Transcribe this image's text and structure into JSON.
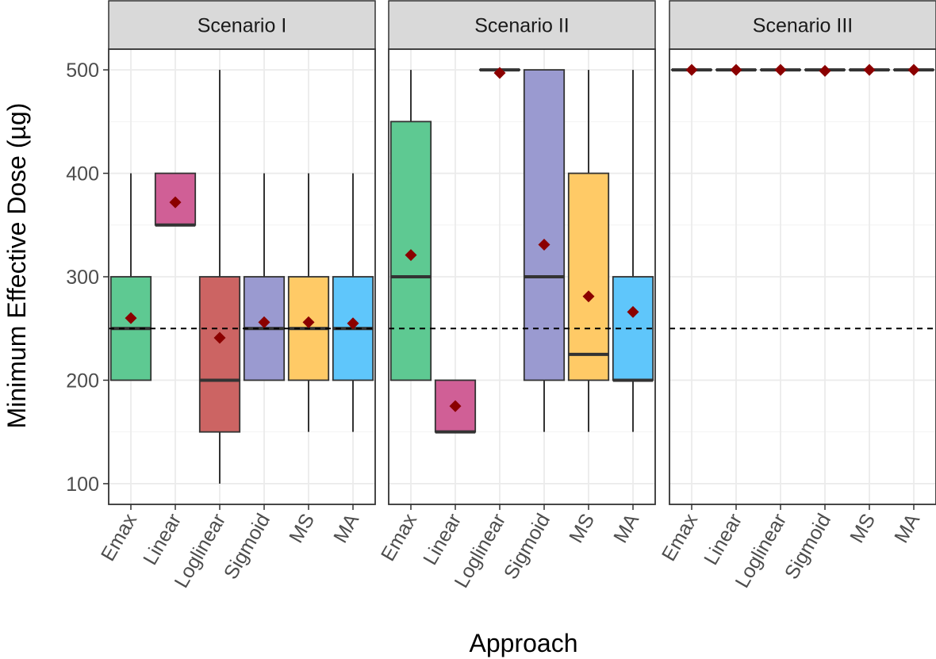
{
  "chart_data": {
    "type": "box",
    "xlabel": "Approach",
    "ylabel": "Minimum Effective Dose (µg)",
    "ylim": [
      80,
      520
    ],
    "yticks": [
      100,
      200,
      300,
      400,
      500
    ],
    "grid": true,
    "legend": "none",
    "reference_line": 250,
    "categories": [
      "Emax",
      "Linear",
      "Loglinear",
      "Sigmoid",
      "MS",
      "MA"
    ],
    "colors": {
      "Emax": "#5ec992",
      "Linear": "#d05f96",
      "Loglinear": "#cc6463",
      "Sigmoid": "#9a9ad0",
      "MS": "#ffca66",
      "MA": "#5fc6fb",
      "mean_marker": "#8b0000",
      "strip": "#d9d9d9"
    },
    "panels": [
      {
        "title": "Scenario I",
        "boxes": [
          {
            "category": "Emax",
            "min": 200,
            "q1": 200,
            "median": 250,
            "q3": 300,
            "max": 400,
            "mean": 260
          },
          {
            "category": "Linear",
            "min": 350,
            "q1": 350,
            "median": 350,
            "q3": 400,
            "max": 400,
            "mean": 372
          },
          {
            "category": "Loglinear",
            "min": 100,
            "q1": 150,
            "median": 200,
            "q3": 300,
            "max": 500,
            "mean": 241
          },
          {
            "category": "Sigmoid",
            "min": 200,
            "q1": 200,
            "median": 250,
            "q3": 300,
            "max": 400,
            "mean": 256
          },
          {
            "category": "MS",
            "min": 150,
            "q1": 200,
            "median": 250,
            "q3": 300,
            "max": 400,
            "mean": 256
          },
          {
            "category": "MA",
            "min": 150,
            "q1": 200,
            "median": 250,
            "q3": 300,
            "max": 400,
            "mean": 255
          }
        ]
      },
      {
        "title": "Scenario II",
        "boxes": [
          {
            "category": "Emax",
            "min": 200,
            "q1": 200,
            "median": 300,
            "q3": 450,
            "max": 500,
            "mean": 321
          },
          {
            "category": "Linear",
            "min": 150,
            "q1": 150,
            "median": 150,
            "q3": 200,
            "max": 200,
            "mean": 175
          },
          {
            "category": "Loglinear",
            "min": 500,
            "q1": 500,
            "median": 500,
            "q3": 500,
            "max": 500,
            "mean": 497
          },
          {
            "category": "Sigmoid",
            "min": 150,
            "q1": 200,
            "median": 300,
            "q3": 500,
            "max": 500,
            "mean": 331
          },
          {
            "category": "MS",
            "min": 150,
            "q1": 200,
            "median": 225,
            "q3": 400,
            "max": 500,
            "mean": 281
          },
          {
            "category": "MA",
            "min": 150,
            "q1": 200,
            "median": 200,
            "q3": 300,
            "max": 500,
            "mean": 266
          }
        ]
      },
      {
        "title": "Scenario III",
        "boxes": [
          {
            "category": "Emax",
            "min": 500,
            "q1": 500,
            "median": 500,
            "q3": 500,
            "max": 500,
            "mean": 500
          },
          {
            "category": "Linear",
            "min": 500,
            "q1": 500,
            "median": 500,
            "q3": 500,
            "max": 500,
            "mean": 500
          },
          {
            "category": "Loglinear",
            "min": 500,
            "q1": 500,
            "median": 500,
            "q3": 500,
            "max": 500,
            "mean": 500
          },
          {
            "category": "Sigmoid",
            "min": 500,
            "q1": 500,
            "median": 500,
            "q3": 500,
            "max": 500,
            "mean": 499
          },
          {
            "category": "MS",
            "min": 500,
            "q1": 500,
            "median": 500,
            "q3": 500,
            "max": 500,
            "mean": 500
          },
          {
            "category": "MA",
            "min": 500,
            "q1": 500,
            "median": 500,
            "q3": 500,
            "max": 500,
            "mean": 500
          }
        ]
      }
    ]
  }
}
